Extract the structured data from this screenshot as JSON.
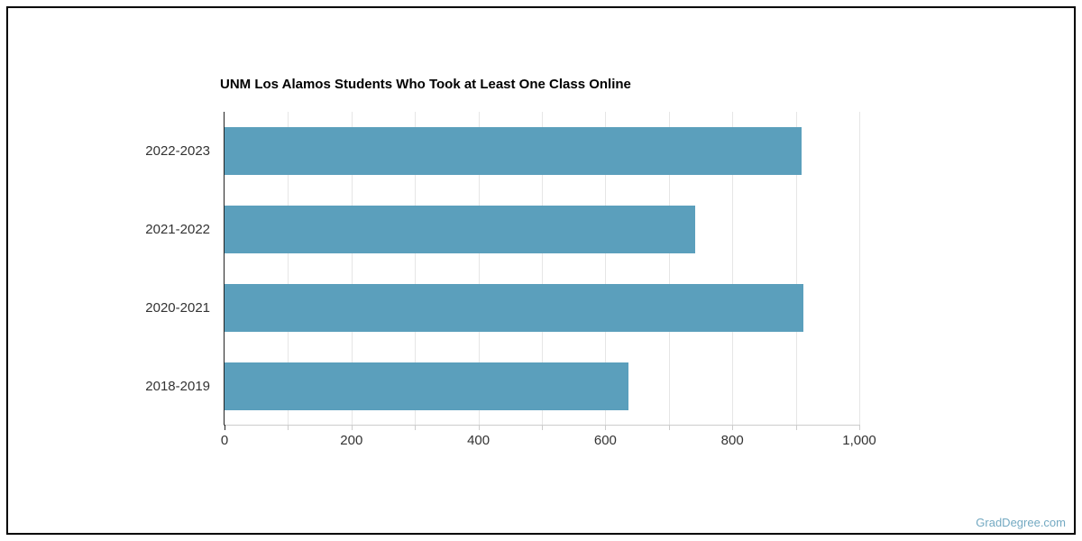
{
  "watermark": {
    "text": "GradDegree.com",
    "color": "#73a9c2"
  },
  "chart_data": {
    "type": "bar",
    "orientation": "horizontal",
    "title": "UNM Los Alamos Students Who Took at Least One Class Online",
    "categories": [
      "2022-2023",
      "2021-2022",
      "2020-2021",
      "2018-2019"
    ],
    "values": [
      909,
      741,
      912,
      637
    ],
    "xlabel": "",
    "ylabel": "",
    "xlim": [
      0,
      1000
    ],
    "x_tick_step": 100,
    "x_tick_labels": [
      "0",
      "200",
      "400",
      "600",
      "800",
      "1,000"
    ],
    "bar_color": "#5b9fbc",
    "grid": true,
    "gridline_color": "#e6e6e6",
    "axis_line_color": "#222222",
    "tick_color": "#cccccc",
    "label_color": "#333333",
    "legend": "none"
  }
}
